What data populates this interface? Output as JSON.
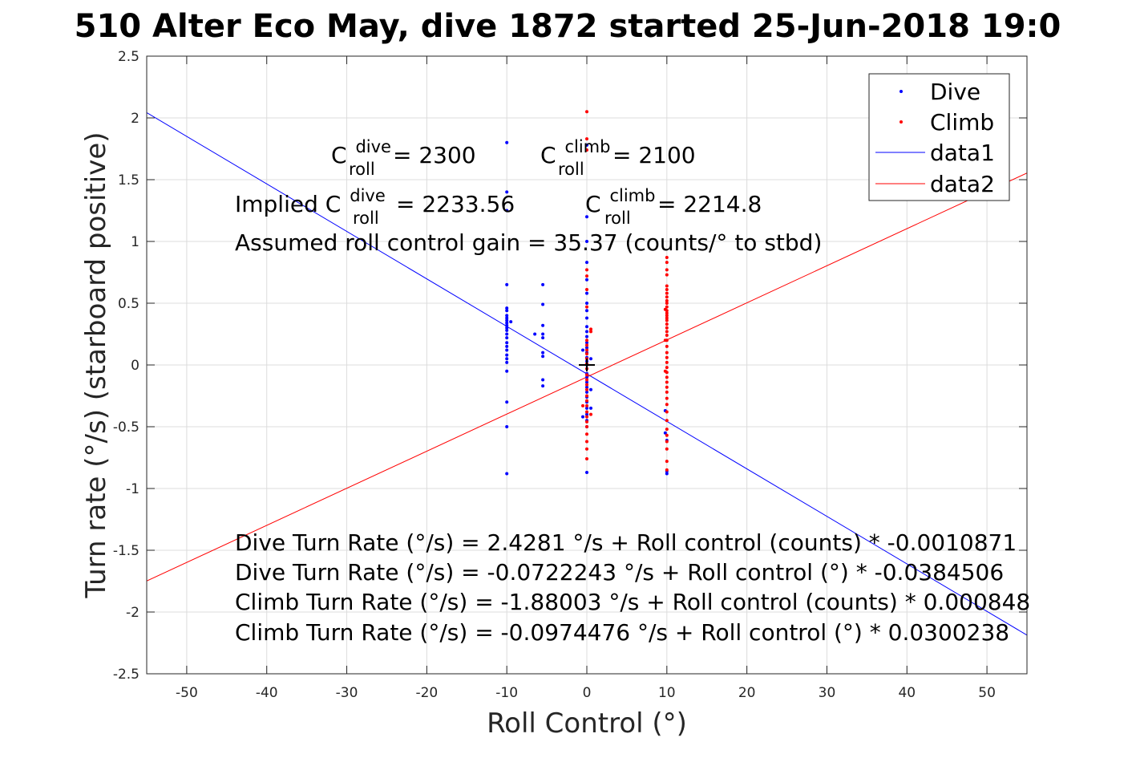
{
  "chart_data": {
    "type": "scatter",
    "title": "510 Alter Eco May, dive 1872 started 25-Jun-2018 19:0",
    "xlabel": "Roll Control (°)",
    "ylabel": "Turn rate (°/s) (starboard positive)",
    "xlim": [
      -55,
      55
    ],
    "ylim": [
      -2.5,
      2.5
    ],
    "xticks": [
      -50,
      -40,
      -30,
      -20,
      -10,
      0,
      10,
      20,
      30,
      40,
      50
    ],
    "xtick_labels": [
      "-50",
      "-40",
      "-30",
      "-20",
      "-10",
      "0",
      "10",
      "20",
      "30",
      "40",
      "50"
    ],
    "yticks": [
      -2.5,
      -2,
      -1.5,
      -1,
      -0.5,
      0,
      0.5,
      1,
      1.5,
      2,
      2.5
    ],
    "ytick_labels": [
      "-2.5",
      "-2",
      "-1.5",
      "-1",
      "-0.5",
      "0",
      "0.5",
      "1",
      "1.5",
      "2",
      "2.5"
    ],
    "grid": true,
    "legend_position": "top-right",
    "series": [
      {
        "name": "Dive",
        "kind": "points",
        "color": "#0000ff",
        "points": [
          [
            -10,
            1.8
          ],
          [
            -10,
            1.4
          ],
          [
            -10,
            1.25
          ],
          [
            -10,
            0.65
          ],
          [
            -10,
            0.46
          ],
          [
            -10,
            0.44
          ],
          [
            -10,
            0.4
          ],
          [
            -10,
            0.38
          ],
          [
            -10,
            0.36
          ],
          [
            -10,
            0.34
          ],
          [
            -10,
            0.32
          ],
          [
            -10,
            0.3
          ],
          [
            -10,
            0.28
          ],
          [
            -10,
            0.25
          ],
          [
            -10,
            0.22
          ],
          [
            -10,
            0.18
          ],
          [
            -10,
            0.15
          ],
          [
            -10,
            0.12
          ],
          [
            -10,
            0.08
          ],
          [
            -10,
            0.05
          ],
          [
            -10,
            0.02
          ],
          [
            -10,
            -0.05
          ],
          [
            -10,
            -0.3
          ],
          [
            -10,
            -0.5
          ],
          [
            -10,
            -0.88
          ],
          [
            -9.5,
            0.35
          ],
          [
            -6.5,
            0.25
          ],
          [
            -5.5,
            0.65
          ],
          [
            -5.5,
            0.49
          ],
          [
            -5.5,
            0.32
          ],
          [
            -5.5,
            0.25
          ],
          [
            -5.5,
            0.22
          ],
          [
            -5.5,
            0.1
          ],
          [
            -5.5,
            0.07
          ],
          [
            -5.5,
            -0.12
          ],
          [
            -5.5,
            -0.17
          ],
          [
            0,
            1.78
          ],
          [
            0,
            1.2
          ],
          [
            0,
            1.0
          ],
          [
            0,
            0.83
          ],
          [
            0,
            0.69
          ],
          [
            0,
            0.58
          ],
          [
            0,
            0.5
          ],
          [
            0,
            0.44
          ],
          [
            0,
            0.38
          ],
          [
            0,
            0.31
          ],
          [
            0,
            0.27
          ],
          [
            0,
            0.23
          ],
          [
            0,
            0.18
          ],
          [
            0,
            0.14
          ],
          [
            0,
            0.1
          ],
          [
            0,
            0.06
          ],
          [
            0,
            0.03
          ],
          [
            0,
            0.0
          ],
          [
            0,
            -0.03
          ],
          [
            0,
            -0.07
          ],
          [
            0,
            -0.1
          ],
          [
            0,
            -0.14
          ],
          [
            0,
            -0.18
          ],
          [
            0,
            -0.22
          ],
          [
            0,
            -0.26
          ],
          [
            0,
            -0.3
          ],
          [
            0,
            -0.35
          ],
          [
            0,
            -0.4
          ],
          [
            0,
            -0.45
          ],
          [
            0,
            -0.5
          ],
          [
            0,
            -0.87
          ],
          [
            0.5,
            0.05
          ],
          [
            0.5,
            -0.2
          ],
          [
            0.5,
            -0.35
          ],
          [
            -0.5,
            0.12
          ],
          [
            -0.5,
            -0.42
          ],
          [
            9.8,
            -0.37
          ],
          [
            9.8,
            -0.55
          ],
          [
            10,
            -0.61
          ],
          [
            10,
            -0.86
          ],
          [
            10,
            -0.88
          ]
        ]
      },
      {
        "name": "Climb",
        "kind": "points",
        "color": "#ff0000",
        "points": [
          [
            0,
            2.05
          ],
          [
            0,
            1.83
          ],
          [
            0,
            1.74
          ],
          [
            0,
            0.77
          ],
          [
            0,
            0.72
          ],
          [
            0,
            0.61
          ],
          [
            0,
            0.47
          ],
          [
            0.5,
            0.29
          ],
          [
            0.5,
            0.27
          ],
          [
            0,
            0.2
          ],
          [
            0,
            0.16
          ],
          [
            0,
            0.12
          ],
          [
            0,
            0.09
          ],
          [
            0,
            0.05
          ],
          [
            0,
            0.01
          ],
          [
            0,
            -0.03
          ],
          [
            0,
            -0.08
          ],
          [
            0,
            -0.12
          ],
          [
            0,
            -0.16
          ],
          [
            0,
            -0.2
          ],
          [
            0,
            -0.25
          ],
          [
            0,
            -0.29
          ],
          [
            0,
            -0.33
          ],
          [
            0,
            -0.38
          ],
          [
            0,
            -0.42
          ],
          [
            0,
            -0.46
          ],
          [
            0,
            -0.5
          ],
          [
            0,
            -0.56
          ],
          [
            0,
            -0.62
          ],
          [
            0,
            -0.68
          ],
          [
            0,
            -0.76
          ],
          [
            0.5,
            -0.4
          ],
          [
            -0.5,
            -0.33
          ],
          [
            10,
            0.87
          ],
          [
            10,
            0.83
          ],
          [
            10,
            0.77
          ],
          [
            10,
            0.73
          ],
          [
            10,
            0.64
          ],
          [
            10,
            0.61
          ],
          [
            10,
            0.58
          ],
          [
            10,
            0.55
          ],
          [
            10,
            0.52
          ],
          [
            10,
            0.5
          ],
          [
            10,
            0.47
          ],
          [
            10,
            0.44
          ],
          [
            10,
            0.42
          ],
          [
            10,
            0.4
          ],
          [
            10,
            0.38
          ],
          [
            10,
            0.36
          ],
          [
            10,
            0.33
          ],
          [
            10,
            0.3
          ],
          [
            10,
            0.27
          ],
          [
            10,
            0.24
          ],
          [
            10,
            0.2
          ],
          [
            10,
            0.15
          ],
          [
            10,
            0.1
          ],
          [
            10,
            0.06
          ],
          [
            10,
            0.02
          ],
          [
            10,
            -0.02
          ],
          [
            10,
            -0.06
          ],
          [
            10,
            -0.1
          ],
          [
            10,
            -0.14
          ],
          [
            10,
            -0.18
          ],
          [
            10,
            -0.22
          ],
          [
            10,
            -0.27
          ],
          [
            10,
            -0.32
          ],
          [
            10,
            -0.38
          ],
          [
            10,
            -0.45
          ],
          [
            10,
            -0.52
          ],
          [
            10,
            -0.57
          ],
          [
            10,
            -0.62
          ],
          [
            10,
            -0.68
          ],
          [
            10,
            -0.78
          ],
          [
            10,
            -0.85
          ],
          [
            9.8,
            0.45
          ],
          [
            9.8,
            0.2
          ],
          [
            9.8,
            -0.05
          ]
        ]
      },
      {
        "name": "data1",
        "kind": "line",
        "color": "#0000ff",
        "intercept": -0.0722243,
        "slope": -0.0384506
      },
      {
        "name": "data2",
        "kind": "line",
        "color": "#ff0000",
        "intercept": -0.0974476,
        "slope": 0.0300238
      }
    ],
    "center_marker": [
      0,
      0
    ],
    "annotations": {
      "c_dive": {
        "base": "C",
        "sup": "dive",
        "sub": "roll",
        "rest": " = 2300"
      },
      "c_climb": {
        "base": "C",
        "sup": "climb",
        "sub": "roll",
        "rest": " = 2100"
      },
      "implied_dive": {
        "prefix": "Implied C",
        "sup": "dive",
        "sub": "roll",
        "rest": " = 2233.56"
      },
      "implied_climb": {
        "base": "C",
        "sup": "climb",
        "sub": "roll",
        "rest": " = 2214.8"
      },
      "gain": "Assumed roll control gain = 35.37 (counts/° to stbd)",
      "fits": [
        "Dive Turn Rate (°/s) = 2.4281 °/s + Roll control (counts) * -0.0010871",
        "Dive Turn Rate (°/s) = -0.0722243 °/s + Roll control (°) * -0.0384506",
        "Climb Turn Rate (°/s) = -1.88003 °/s + Roll control (counts) * 0.000848",
        "Climb Turn Rate (°/s) = -0.0974476 °/s + Roll control (°) * 0.0300238"
      ]
    }
  }
}
